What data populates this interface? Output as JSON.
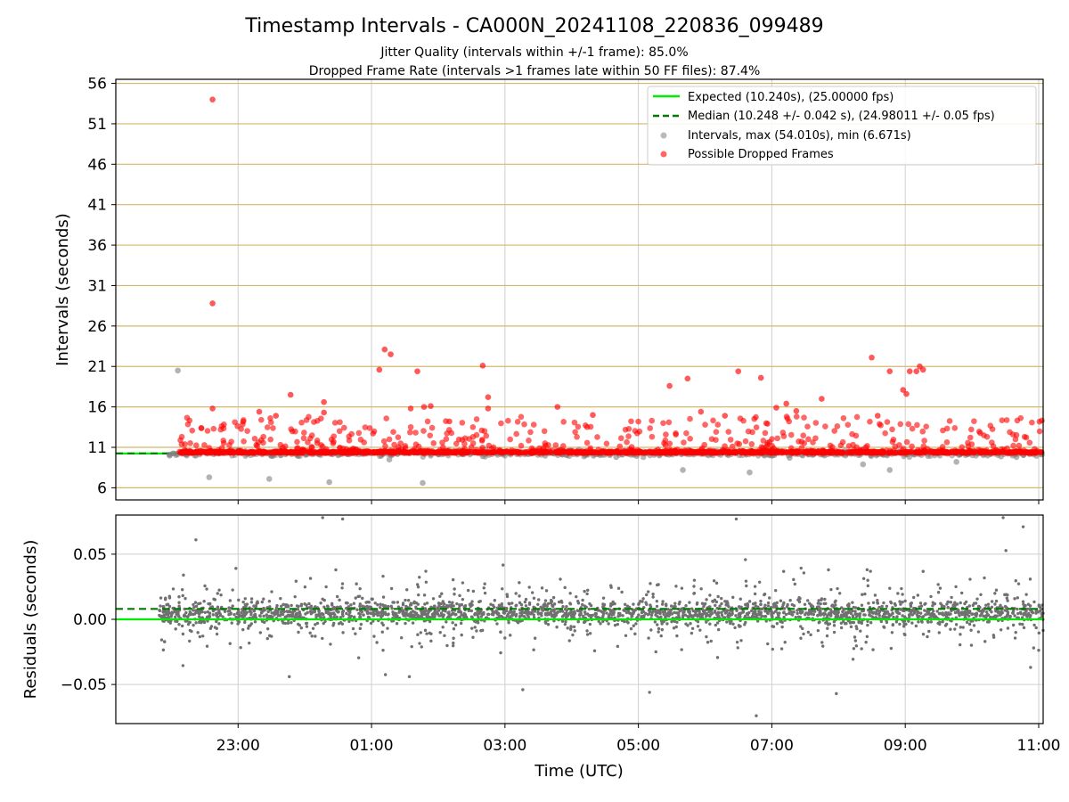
{
  "chart_data": [
    {
      "type": "scatter",
      "title": "Timestamp Intervals - CA000N_20241108_220836_099489",
      "subtitle_lines": [
        "Jitter Quality (intervals within +/-1 frame): 85.0%",
        "Dropped Frame Rate (intervals >1 frames late within 50 FF files): 87.4%"
      ],
      "xlabel": "",
      "ylabel": "Intervals (seconds)",
      "x_unit": "hours since 21:10 UTC",
      "xlim": [
        21.4,
        11.3
      ],
      "xlim_hours": [
        0,
        13.9
      ],
      "ylim": [
        4.5,
        56.5
      ],
      "yticks": [
        6,
        11,
        16,
        21,
        26,
        31,
        36,
        41,
        46,
        51,
        56
      ],
      "ygrid_color": "#d4b86a",
      "xgrid": true,
      "legend_position": "top-right",
      "series": [
        {
          "name": "Expected (10.240s), (25.00000 fps)",
          "kind": "line",
          "color": "#00ee00",
          "style": "solid",
          "y": 10.24
        },
        {
          "name": "Median (10.248 +/- 0.042 s), (24.98011 +/- 0.05 fps)",
          "kind": "line",
          "color": "#007a00",
          "style": "dashed",
          "y": 10.248
        },
        {
          "name": "Intervals, max (54.010s), min (6.671s)",
          "kind": "scatter",
          "color": "#808080",
          "max": 54.01,
          "min": 6.671,
          "outliers": [
            [
              0.93,
              20.5
            ],
            [
              1.4,
              7.3
            ],
            [
              2.3,
              7.1
            ],
            [
              3.2,
              6.7
            ],
            [
              4.6,
              6.6
            ],
            [
              4.1,
              9.5
            ],
            [
              5.5,
              9.9
            ],
            [
              7.5,
              9.8
            ],
            [
              8.5,
              8.2
            ],
            [
              9.5,
              7.9
            ],
            [
              10.1,
              9.7
            ],
            [
              11.2,
              8.9
            ],
            [
              11.6,
              8.2
            ],
            [
              12.6,
              9.2
            ],
            [
              13.5,
              9.8
            ]
          ]
        },
        {
          "name": "Possible Dropped Frames",
          "kind": "scatter",
          "color": "#ff0000",
          "outliers": [
            [
              1.45,
              54.0
            ],
            [
              1.45,
              28.8
            ],
            [
              1.45,
              15.8
            ],
            [
              2.15,
              15.4
            ],
            [
              2.4,
              14.9
            ],
            [
              2.62,
              17.5
            ],
            [
              3.12,
              15.3
            ],
            [
              3.12,
              16.6
            ],
            [
              3.95,
              20.6
            ],
            [
              4.03,
              23.1
            ],
            [
              4.12,
              22.5
            ],
            [
              4.42,
              15.8
            ],
            [
              4.52,
              20.4
            ],
            [
              4.62,
              16.0
            ],
            [
              4.72,
              16.1
            ],
            [
              5.0,
              14.2
            ],
            [
              5.5,
              21.1
            ],
            [
              5.58,
              17.2
            ],
            [
              5.58,
              15.8
            ],
            [
              6.62,
              16.0
            ],
            [
              7.15,
              15.0
            ],
            [
              8.3,
              18.6
            ],
            [
              8.57,
              19.5
            ],
            [
              8.77,
              15.4
            ],
            [
              9.13,
              14.9
            ],
            [
              9.33,
              20.4
            ],
            [
              9.67,
              19.6
            ],
            [
              9.9,
              15.9
            ],
            [
              10.05,
              16.4
            ],
            [
              10.2,
              15.5
            ],
            [
              10.58,
              17.0
            ],
            [
              11.33,
              22.1
            ],
            [
              11.42,
              14.9
            ],
            [
              11.6,
              20.4
            ],
            [
              11.8,
              18.1
            ],
            [
              11.85,
              17.6
            ],
            [
              11.9,
              20.4
            ],
            [
              12.0,
              20.4
            ],
            [
              12.05,
              21.0
            ],
            [
              12.1,
              20.6
            ]
          ]
        }
      ]
    },
    {
      "type": "scatter",
      "title": "",
      "xlabel": "Time (UTC)",
      "ylabel": "Residuals (seconds)",
      "x_unit": "hours since 21:10 UTC",
      "xlim_hours": [
        0,
        13.9
      ],
      "ylim": [
        -0.08,
        0.08
      ],
      "yticks": [
        -0.05,
        0.0,
        0.05
      ],
      "ytick_labels": [
        "−0.05",
        "0.00",
        "0.05"
      ],
      "xticks": [
        "23:00",
        "01:00",
        "03:00",
        "05:00",
        "07:00",
        "09:00",
        "11:00"
      ],
      "xticks_hours": [
        1.833,
        3.833,
        5.833,
        7.833,
        9.833,
        11.833,
        13.833
      ],
      "xgrid": true,
      "ygrid": true,
      "series": [
        {
          "name": "",
          "kind": "line",
          "color": "#00ee00",
          "style": "solid",
          "y": 0.0
        },
        {
          "name": "",
          "kind": "line",
          "color": "#007a00",
          "style": "dashed",
          "y": 0.008
        },
        {
          "name": "",
          "kind": "scatter",
          "color": "#707070",
          "x_range_hours": [
            0.65,
            13.9
          ],
          "center": 0.005,
          "spread": 0.012,
          "max": 0.078,
          "min": -0.074
        }
      ]
    }
  ]
}
